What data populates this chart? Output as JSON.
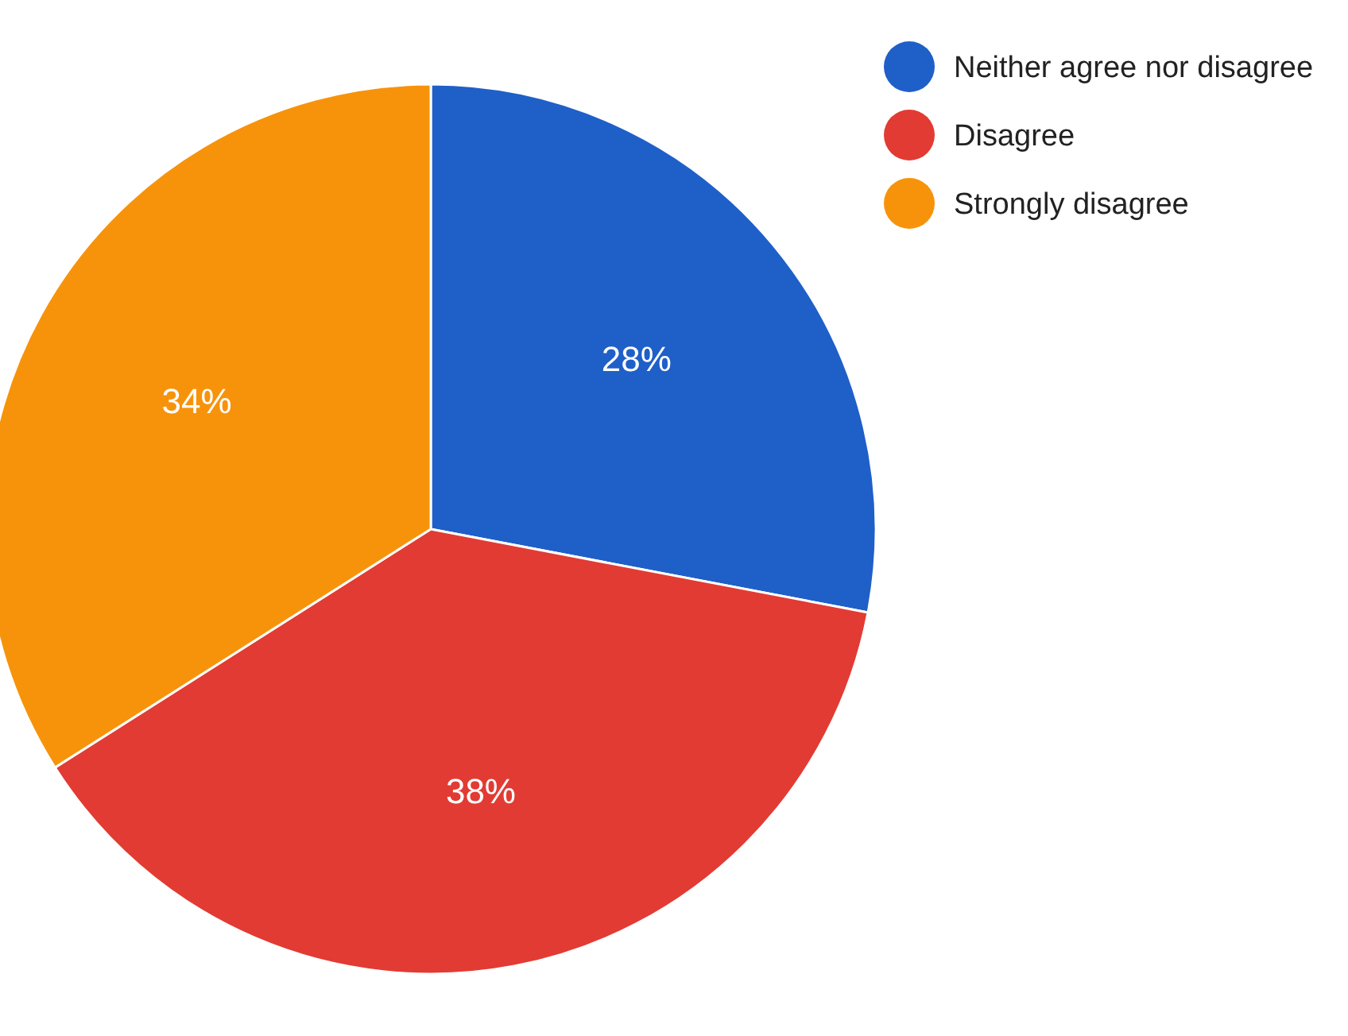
{
  "chart_data": {
    "type": "pie",
    "categories": [
      "Neither agree nor disagree",
      "Disagree",
      "Strongly disagree"
    ],
    "values": [
      28,
      38,
      34
    ],
    "colors": [
      "#1f5fc8",
      "#e23b33",
      "#f7930b"
    ],
    "value_labels": [
      "28%",
      "38%",
      "34%"
    ],
    "data_labels": true,
    "legend": "top right"
  }
}
